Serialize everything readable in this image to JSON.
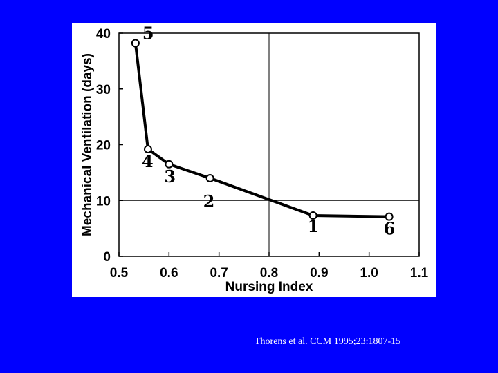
{
  "chart_data": {
    "type": "line",
    "xlabel": "Nursing Index",
    "ylabel": "Mechanical Ventilation (days)",
    "xlim": [
      0.5,
      1.1
    ],
    "ylim": [
      0,
      40
    ],
    "x_ticks": [
      "0.5",
      "0.6",
      "0.7",
      "0.8",
      "0.9",
      "1.0",
      "1.1"
    ],
    "y_ticks": [
      "0",
      "10",
      "20",
      "30",
      "40"
    ],
    "reference_lines": {
      "x": 0.8,
      "y": 10
    },
    "points": [
      {
        "label": "5",
        "x": 0.533,
        "y": 38.2
      },
      {
        "label": "4",
        "x": 0.558,
        "y": 19.2
      },
      {
        "label": "3",
        "x": 0.6,
        "y": 16.5
      },
      {
        "label": "2",
        "x": 0.682,
        "y": 14.0
      },
      {
        "label": "1",
        "x": 0.888,
        "y": 7.3
      },
      {
        "label": "6",
        "x": 1.04,
        "y": 7.1
      }
    ],
    "grid": false,
    "line_color": "#000000",
    "marker": "open-circle"
  },
  "citation": "Thorens et al. CCM 1995;23:1807-15",
  "colors": {
    "background": "#0000ff",
    "panel": "#ffffff",
    "citation_text": "#ffffff"
  }
}
